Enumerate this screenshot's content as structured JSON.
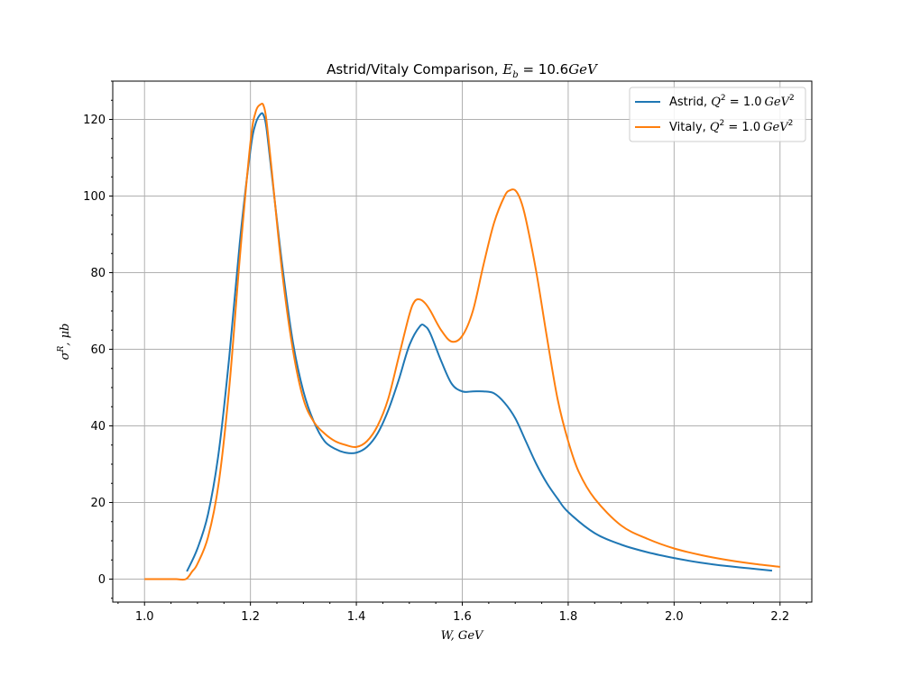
{
  "chart_data": {
    "type": "line",
    "title": "Astrid/Vitaly Comparison, E_b = 10.6GeV",
    "title_parts": {
      "prefix": "Astrid/Vitaly Comparison, ",
      "var": "E",
      "sub": "b",
      "rest": " = 10.6",
      "unit": "GeV"
    },
    "xlabel": "W, GeV",
    "ylabel": "σ^R, μb",
    "xlim": [
      0.94,
      2.26
    ],
    "ylim": [
      -6,
      130
    ],
    "xticks": [
      1.0,
      1.2,
      1.4,
      1.6,
      1.8,
      2.0,
      2.2
    ],
    "xtick_labels": [
      "1.0",
      "1.2",
      "1.4",
      "1.6",
      "1.8",
      "2.0",
      "2.2"
    ],
    "yticks": [
      0,
      20,
      40,
      60,
      80,
      100,
      120
    ],
    "ytick_labels": [
      "0",
      "20",
      "40",
      "60",
      "80",
      "100",
      "120"
    ],
    "grid": true,
    "legend_position": "top-right",
    "series": [
      {
        "name": "Astrid, Q^2 = 1.0 GeV^2",
        "legend_parts": {
          "prefix": "Astrid, ",
          "var": "Q",
          "sup": "2",
          "rest": " = 1.0",
          "unit": "GeV",
          "unit_sup": "2"
        },
        "color": "#1f77b4",
        "x": [
          1.08,
          1.1,
          1.12,
          1.14,
          1.16,
          1.18,
          1.2,
          1.21,
          1.22,
          1.225,
          1.23,
          1.24,
          1.26,
          1.28,
          1.3,
          1.32,
          1.34,
          1.36,
          1.38,
          1.4,
          1.42,
          1.44,
          1.46,
          1.48,
          1.5,
          1.52,
          1.53,
          1.54,
          1.56,
          1.58,
          1.6,
          1.62,
          1.64,
          1.66,
          1.68,
          1.7,
          1.72,
          1.74,
          1.76,
          1.78,
          1.8,
          1.85,
          1.9,
          1.95,
          2.0,
          2.05,
          2.1,
          2.15,
          2.185
        ],
        "y": [
          2,
          8,
          17,
          33,
          58,
          88,
          112,
          119,
          121.5,
          121,
          118,
          106,
          82,
          62,
          49,
          41,
          36,
          34,
          33,
          33,
          34.5,
          38,
          44,
          52,
          61,
          66,
          66,
          64,
          57,
          51,
          49,
          49,
          49,
          48.5,
          46,
          42,
          36,
          30,
          25,
          21,
          17.5,
          12,
          9,
          7,
          5.5,
          4.3,
          3.4,
          2.7,
          2.2
        ]
      },
      {
        "name": "Vitaly, Q^2 = 1.0 GeV^2",
        "legend_parts": {
          "prefix": "Vitaly, ",
          "var": "Q",
          "sup": "2",
          "rest": " = 1.0",
          "unit": "GeV",
          "unit_sup": "2"
        },
        "color": "#ff7f0e",
        "x": [
          1.0,
          1.02,
          1.04,
          1.06,
          1.078,
          1.09,
          1.1,
          1.12,
          1.14,
          1.16,
          1.18,
          1.2,
          1.21,
          1.22,
          1.225,
          1.23,
          1.24,
          1.26,
          1.28,
          1.3,
          1.32,
          1.34,
          1.36,
          1.38,
          1.4,
          1.42,
          1.44,
          1.46,
          1.48,
          1.5,
          1.51,
          1.52,
          1.53,
          1.54,
          1.56,
          1.58,
          1.6,
          1.62,
          1.64,
          1.66,
          1.68,
          1.69,
          1.7,
          1.71,
          1.72,
          1.74,
          1.76,
          1.78,
          1.8,
          1.82,
          1.85,
          1.9,
          1.95,
          2.0,
          2.05,
          2.1,
          2.15,
          2.2
        ],
        "y": [
          0,
          0,
          0,
          0,
          0,
          2,
          4,
          11,
          25,
          50,
          84,
          114,
          122,
          124,
          123.5,
          120,
          107,
          80,
          60,
          47,
          41,
          38,
          36,
          35,
          34.5,
          36,
          40,
          47,
          58,
          69,
          72.5,
          73,
          72,
          70,
          65,
          62,
          63.5,
          70,
          82,
          93,
          100,
          101.5,
          101.5,
          99,
          94,
          80,
          63,
          47,
          36,
          28,
          21,
          14,
          10.5,
          8,
          6.3,
          5,
          4,
          3.2
        ]
      }
    ]
  }
}
